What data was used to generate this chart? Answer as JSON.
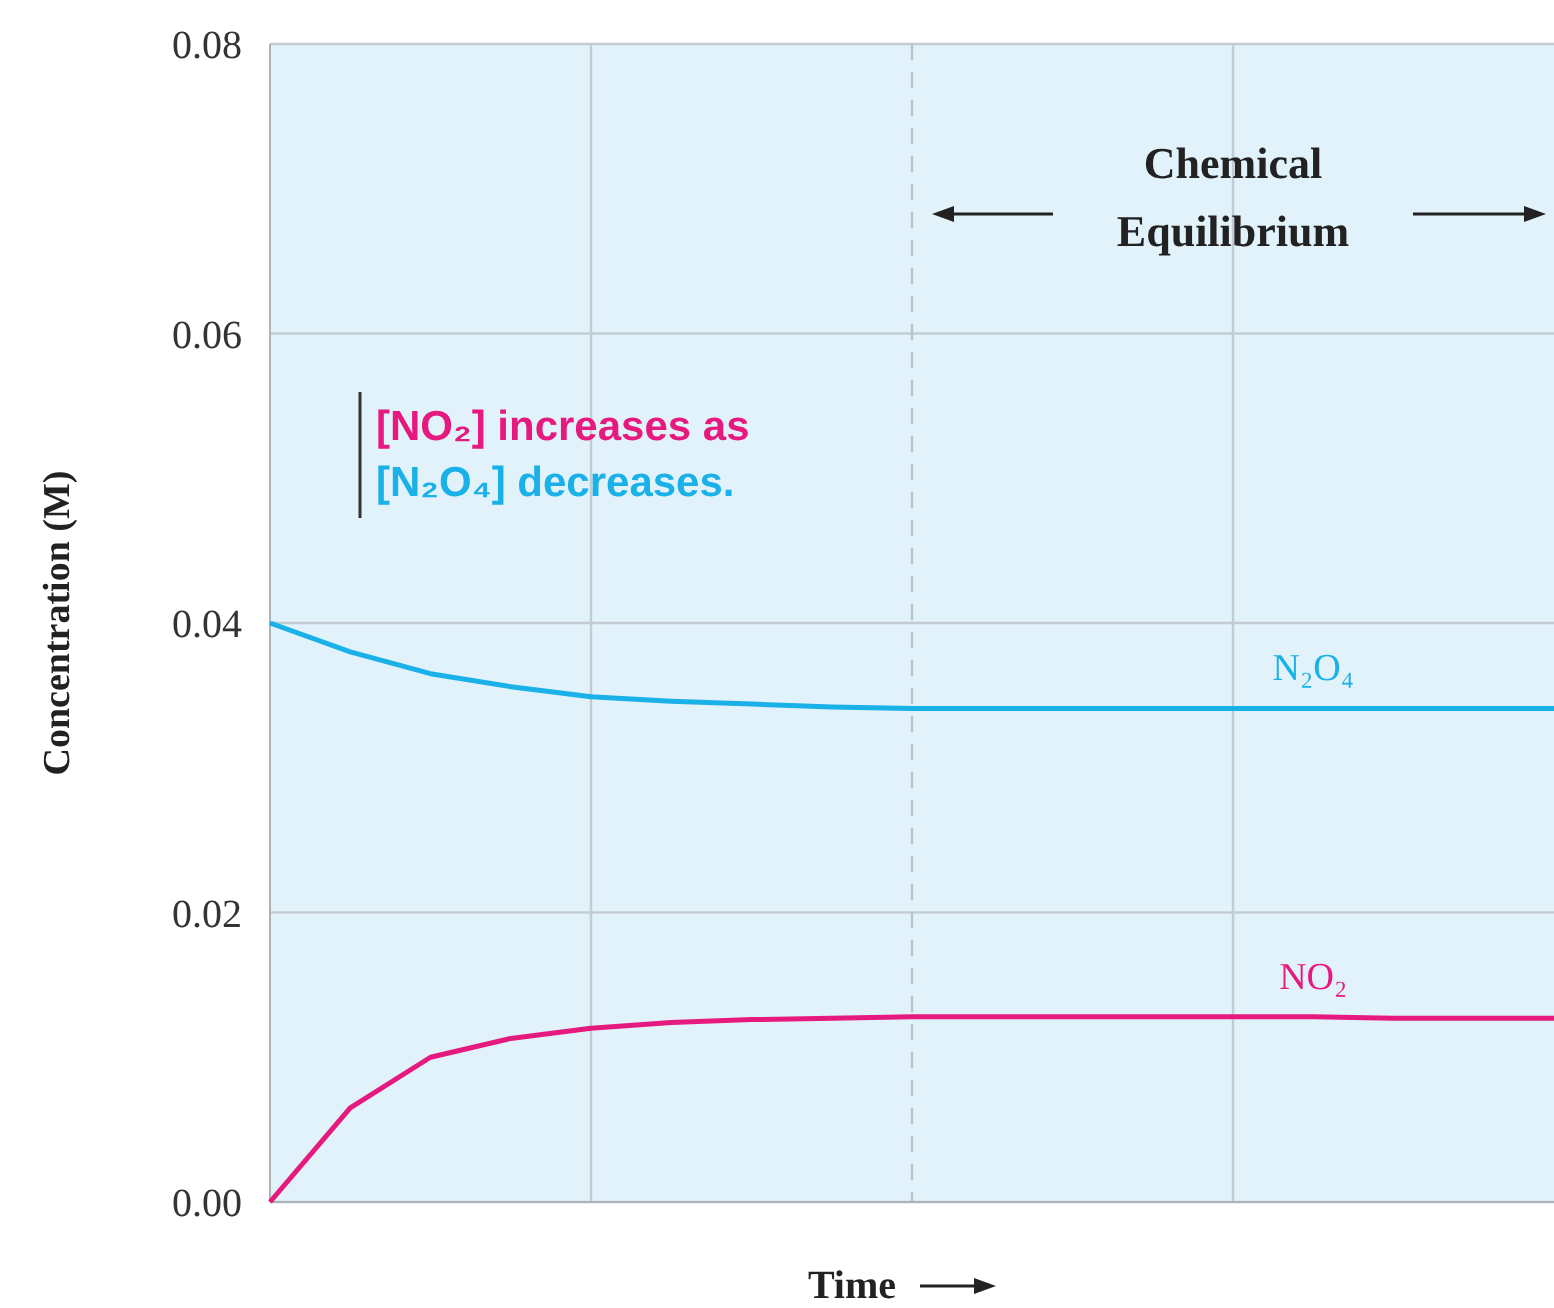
{
  "chart_data": {
    "type": "line",
    "xlabel": "Time",
    "ylabel": "Concentration (M)",
    "categories": [
      null,
      null,
      null,
      null,
      null,
      null,
      null,
      null,
      null,
      null,
      null,
      null,
      null,
      null,
      null,
      null,
      null
    ],
    "ylim": [
      0,
      0.08
    ],
    "yticks": [
      {
        "value": 0,
        "label": "0.00"
      },
      {
        "value": 0.02,
        "label": "0.02"
      },
      {
        "value": 0.04,
        "label": "0.04"
      },
      {
        "value": 0.06,
        "label": "0.06"
      },
      {
        "value": 0.08,
        "label": "0.08"
      }
    ],
    "tick_labels": "y",
    "grid": true,
    "legend": false,
    "series": [
      {
        "name": "N₂O₄",
        "color": "#1ab0e8",
        "values": [
          0.04,
          0.038,
          0.0365,
          0.0356,
          0.0349,
          0.0346,
          0.0344,
          0.0342,
          0.0341,
          0.0341,
          0.0341,
          0.0341,
          0.0341,
          0.0341,
          0.0341,
          0.0341,
          0.0341
        ]
      },
      {
        "name": "NO₂",
        "color": "#e6197f",
        "values": [
          0,
          0.0065,
          0.01,
          0.0113,
          0.012,
          0.0124,
          0.0126,
          0.0127,
          0.0128,
          0.0128,
          0.0128,
          0.0128,
          0.0128,
          0.0128,
          0.0127,
          0.0127,
          0.0127
        ]
      }
    ],
    "annotations": [
      "Chemical Equilibrium",
      "[NO₂] increases as",
      "[N₂O₄] decreases."
    ]
  }
}
